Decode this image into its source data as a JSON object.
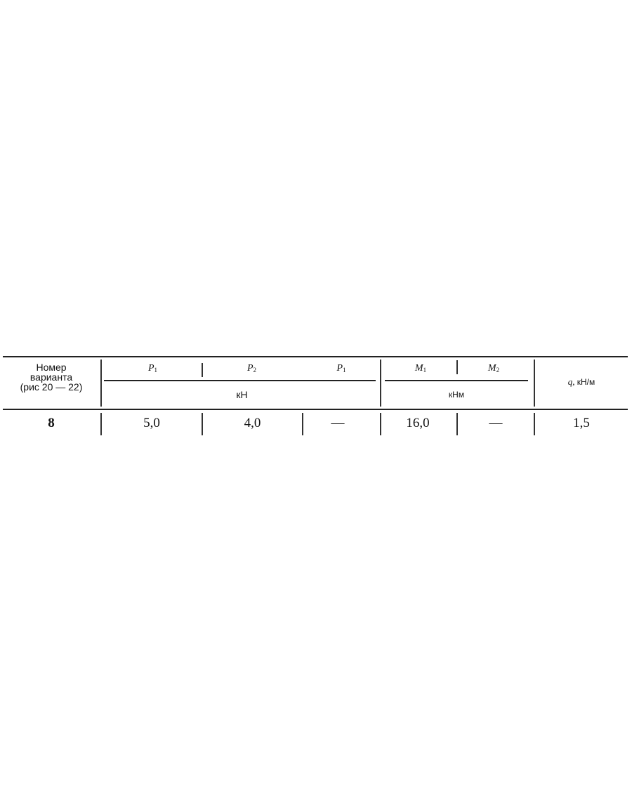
{
  "table": {
    "header": {
      "variant": [
        "Номер",
        "варианта",
        "(рис  20 — 22)"
      ],
      "forces": [
        {
          "symbol": "P",
          "index": "1"
        },
        {
          "symbol": "P",
          "index": "2"
        },
        {
          "symbol": "P",
          "index": "1"
        }
      ],
      "forces_unit": "кН",
      "moments": [
        {
          "symbol": "M",
          "index": "1"
        },
        {
          "symbol": "M",
          "index": "2"
        }
      ],
      "moments_unit": "кНм",
      "q_symbol": "q,",
      "q_unit": "кН/м"
    },
    "row": {
      "variant": "8",
      "p1": "5,0",
      "p2": "4,0",
      "p3": "—",
      "m1": "16,0",
      "m2": "—",
      "q": "1,5"
    }
  }
}
